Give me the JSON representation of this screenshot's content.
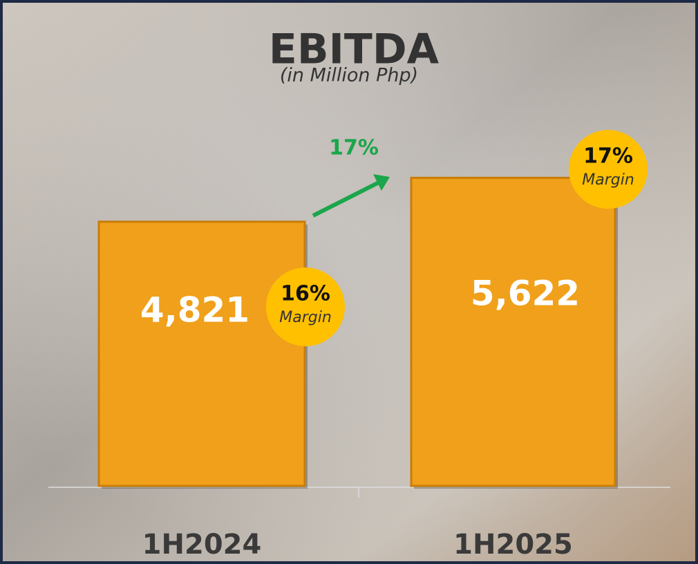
{
  "chart_data": {
    "type": "bar",
    "title": "EBITDA",
    "subtitle": "(in Million Php)",
    "categories": [
      "1H2024",
      "1H2025"
    ],
    "values": [
      4821,
      5622
    ],
    "value_labels": [
      "4,821",
      "5,622"
    ],
    "color": "#f0a01a",
    "ylim": [
      0,
      7000
    ],
    "margins": [
      {
        "value": 16,
        "label": "16%"
      },
      {
        "value": 17,
        "label": "17%"
      }
    ],
    "margin_caption": "Margin",
    "growth": {
      "value": 17,
      "label": "17%"
    }
  }
}
